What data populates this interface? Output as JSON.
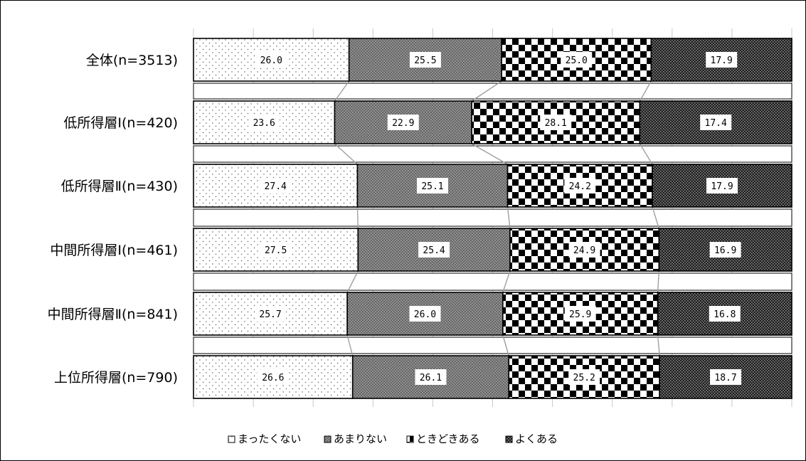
{
  "chart_data": {
    "type": "bar",
    "orientation": "horizontal",
    "stacked": true,
    "xlim": [
      0,
      100
    ],
    "grid": true,
    "legend_position": "bottom",
    "categories": [
      "全体(n=3513)",
      "低所得層Ⅰ(n=420)",
      "低所得層Ⅱ(n=430)",
      "中間所得層Ⅰ(n=461)",
      "中間所得層Ⅱ(n=841)",
      "上位所得層(n=790)"
    ],
    "series": [
      {
        "name": "まったくない",
        "pattern": "sparse-dots",
        "values": [
          26.0,
          23.6,
          27.4,
          27.5,
          25.7,
          26.6
        ]
      },
      {
        "name": "あまりない",
        "pattern": "fine-gray-crosshatch",
        "values": [
          25.5,
          22.9,
          25.1,
          25.4,
          26.0,
          26.1
        ]
      },
      {
        "name": "ときどきある",
        "pattern": "checkerboard",
        "values": [
          25.0,
          28.1,
          24.2,
          24.9,
          25.9,
          25.2
        ]
      },
      {
        "name": "よくある",
        "pattern": "dark-dense-mesh",
        "values": [
          17.9,
          17.4,
          17.9,
          16.9,
          16.8,
          18.7
        ]
      }
    ],
    "value_labels": [
      [
        "26.0",
        "25.5",
        "25.0",
        "17.9"
      ],
      [
        "23.6",
        "22.9",
        "28.1",
        "17.4"
      ],
      [
        "27.4",
        "25.1",
        "24.2",
        "17.9"
      ],
      [
        "27.5",
        "25.4",
        "24.9",
        "16.9"
      ],
      [
        "25.7",
        "26.0",
        "25.9",
        "16.8"
      ],
      [
        "26.6",
        "26.1",
        "25.2",
        "18.7"
      ]
    ],
    "title": "",
    "xlabel": "",
    "ylabel": ""
  },
  "colors": {
    "outline": "#000000",
    "grid": "#c8c8c8",
    "connector": "#a0a0a0",
    "dot_fill": "#555555",
    "crosshatch_base": "#9a9a9a",
    "checker_dark": "#000000",
    "mesh_dark": "#2a2a2a"
  }
}
